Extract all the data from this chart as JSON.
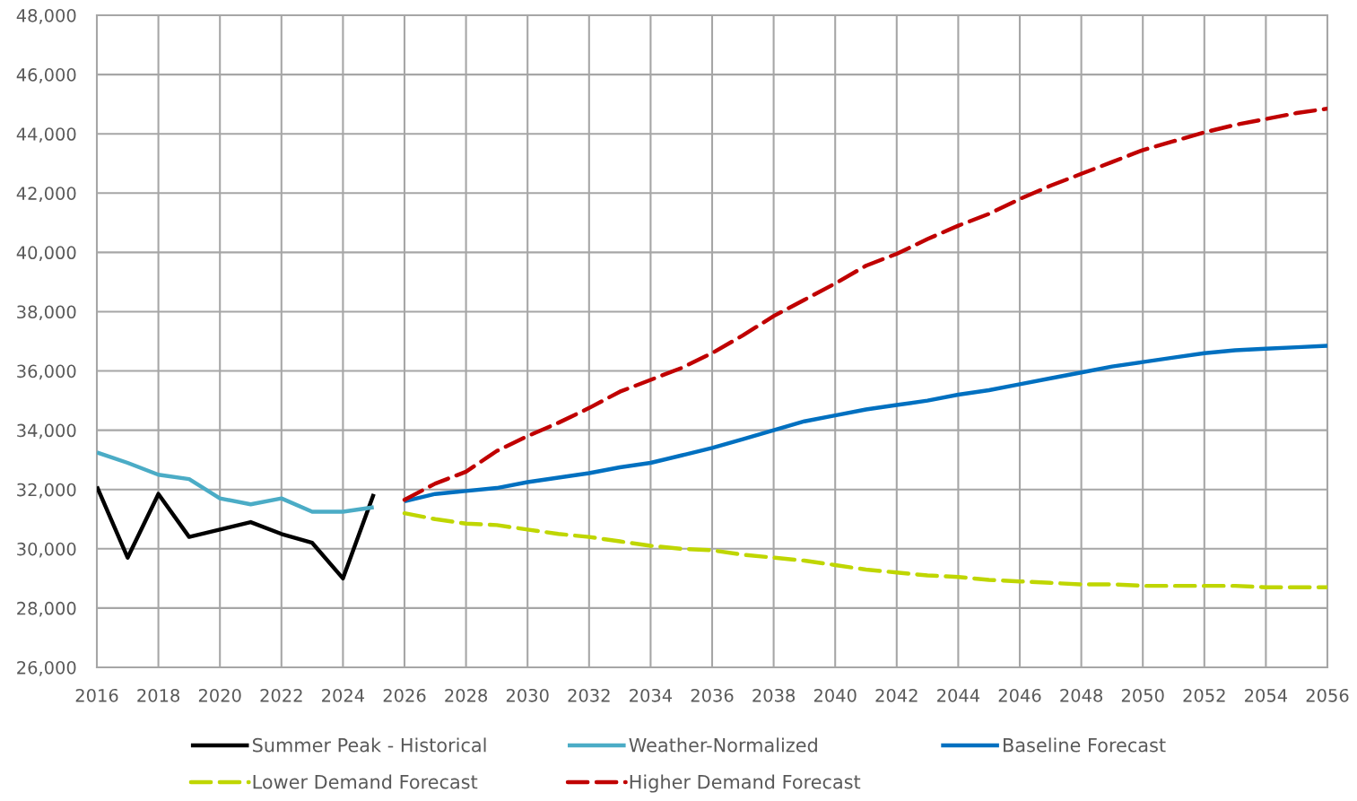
{
  "chart_data": {
    "type": "line",
    "xlim": [
      2016,
      2056
    ],
    "ylim": [
      26000,
      48000
    ],
    "xticks": [
      2016,
      2018,
      2020,
      2022,
      2024,
      2026,
      2028,
      2030,
      2032,
      2034,
      2036,
      2038,
      2040,
      2042,
      2044,
      2046,
      2048,
      2050,
      2052,
      2054,
      2056
    ],
    "yticks": [
      {
        "value": 26000,
        "label": "26,000"
      },
      {
        "value": 28000,
        "label": "28,000"
      },
      {
        "value": 30000,
        "label": "30,000"
      },
      {
        "value": 32000,
        "label": "32,000"
      },
      {
        "value": 34000,
        "label": "34,000"
      },
      {
        "value": 36000,
        "label": "36,000"
      },
      {
        "value": 38000,
        "label": "38,000"
      },
      {
        "value": 40000,
        "label": "40,000"
      },
      {
        "value": 42000,
        "label": "42,000"
      },
      {
        "value": 44000,
        "label": "44,000"
      },
      {
        "value": 46000,
        "label": "46,000"
      },
      {
        "value": 48000,
        "label": "48,000"
      }
    ],
    "grid": true,
    "legend": "bottom",
    "series": [
      {
        "name": "Summer Peak - Historical",
        "color": "#000000",
        "line_style": "solid",
        "x": [
          2016,
          2017,
          2018,
          2019,
          2020,
          2021,
          2022,
          2023,
          2024,
          2025
        ],
        "values": [
          32100,
          29700,
          31850,
          30400,
          30650,
          30900,
          30500,
          30200,
          29000,
          31850
        ]
      },
      {
        "name": "Weather-Normalized",
        "color": "#4bacc6",
        "line_style": "solid",
        "x": [
          2016,
          2017,
          2018,
          2019,
          2020,
          2021,
          2022,
          2023,
          2024,
          2025
        ],
        "values": [
          33250,
          32900,
          32500,
          32350,
          31700,
          31500,
          31700,
          31250,
          31250,
          31400
        ]
      },
      {
        "name": "Baseline Forecast",
        "color": "#0070c0",
        "line_style": "solid",
        "x": [
          2026,
          2027,
          2028,
          2029,
          2030,
          2031,
          2032,
          2033,
          2034,
          2035,
          2036,
          2037,
          2038,
          2039,
          2040,
          2041,
          2042,
          2043,
          2044,
          2045,
          2046,
          2047,
          2048,
          2049,
          2050,
          2051,
          2052,
          2053,
          2054,
          2055,
          2056
        ],
        "values": [
          31600,
          31850,
          31950,
          32050,
          32250,
          32400,
          32550,
          32750,
          32900,
          33150,
          33400,
          33700,
          34000,
          34300,
          34500,
          34700,
          34850,
          35000,
          35200,
          35350,
          35550,
          35750,
          35950,
          36150,
          36300,
          36450,
          36600,
          36700,
          36750,
          36800,
          36850
        ]
      },
      {
        "name": "Lower Demand Forecast",
        "color": "#bfd600",
        "line_style": "dashed",
        "x": [
          2026,
          2027,
          2028,
          2029,
          2030,
          2031,
          2032,
          2033,
          2034,
          2035,
          2036,
          2037,
          2038,
          2039,
          2040,
          2041,
          2042,
          2043,
          2044,
          2045,
          2046,
          2047,
          2048,
          2049,
          2050,
          2051,
          2052,
          2053,
          2054,
          2055,
          2056
        ],
        "values": [
          31200,
          31000,
          30850,
          30800,
          30650,
          30500,
          30400,
          30250,
          30100,
          30000,
          29950,
          29800,
          29700,
          29600,
          29450,
          29300,
          29200,
          29100,
          29050,
          28950,
          28900,
          28850,
          28800,
          28800,
          28750,
          28750,
          28750,
          28750,
          28700,
          28700,
          28700
        ]
      },
      {
        "name": "Higher Demand Forecast",
        "color": "#c00000",
        "line_style": "dashed",
        "x": [
          2026,
          2027,
          2028,
          2029,
          2030,
          2031,
          2032,
          2033,
          2034,
          2035,
          2036,
          2037,
          2038,
          2039,
          2040,
          2041,
          2042,
          2043,
          2044,
          2045,
          2046,
          2047,
          2048,
          2049,
          2050,
          2051,
          2052,
          2053,
          2054,
          2055,
          2056
        ],
        "values": [
          31650,
          32200,
          32600,
          33300,
          33800,
          34250,
          34750,
          35300,
          35700,
          36100,
          36600,
          37200,
          37850,
          38400,
          38950,
          39550,
          39950,
          40450,
          40900,
          41300,
          41800,
          42250,
          42650,
          43050,
          43450,
          43750,
          44050,
          44300,
          44500,
          44700,
          44850
        ]
      }
    ]
  }
}
